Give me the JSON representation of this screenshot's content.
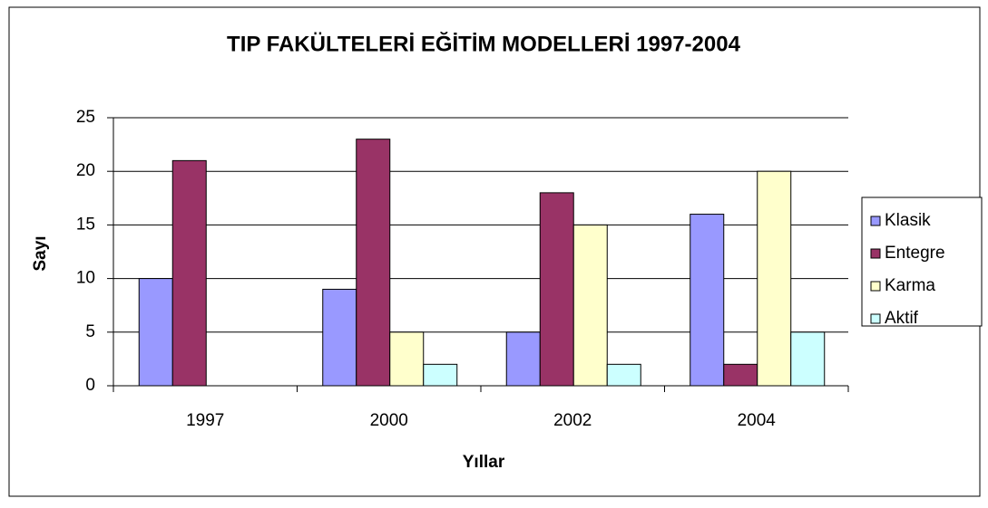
{
  "chart_data": {
    "type": "bar",
    "title": "TIP FAKÜLTELERİ EĞİTİM MODELLERİ 1997-2004",
    "x_label": "Yıllar",
    "y_label": "Sayı",
    "categories": [
      "1997",
      "2000",
      "2002",
      "2004"
    ],
    "series": [
      {
        "name": "Klasik",
        "color": "#9999ff",
        "values": [
          10,
          9,
          5,
          16
        ]
      },
      {
        "name": "Entegre",
        "color": "#993366",
        "values": [
          21,
          23,
          18,
          2
        ]
      },
      {
        "name": "Karma",
        "color": "#ffffcc",
        "values": [
          0,
          5,
          15,
          20
        ]
      },
      {
        "name": "Aktif",
        "color": "#ccffff",
        "values": [
          0,
          2,
          2,
          5
        ]
      }
    ],
    "ylim": [
      0,
      25
    ],
    "yticks": [
      0,
      5,
      10,
      15,
      20,
      25
    ],
    "grid": true,
    "legend": "right"
  }
}
